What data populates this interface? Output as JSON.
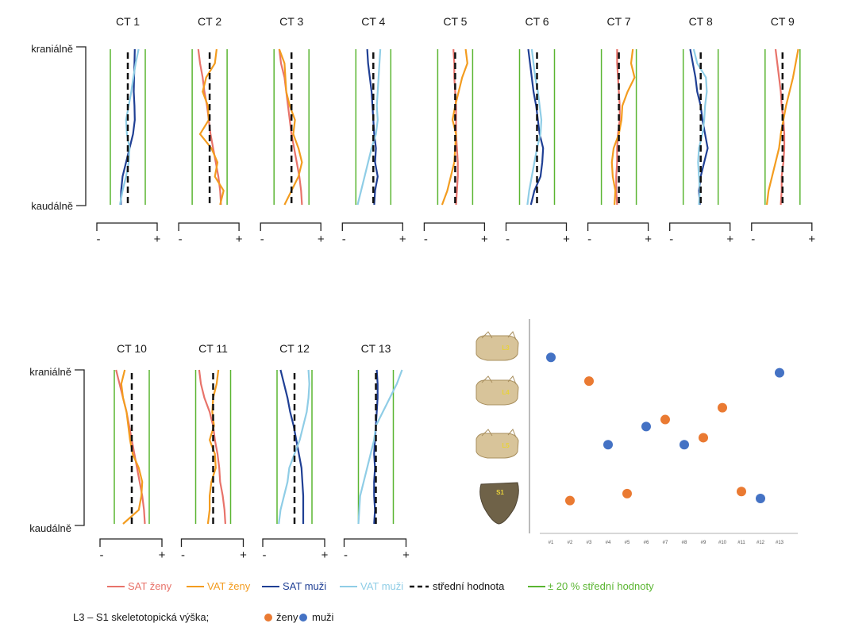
{
  "labels": {
    "top": "kraniálně",
    "bottom": "kaudálně",
    "minus": "-",
    "plus": "+"
  },
  "series_names": {
    "sat_f": "SAT ženy",
    "vat_f": "VAT ženy",
    "sat_m": "SAT muži",
    "vat_m": "VAT muži",
    "mean": "střední hodnota",
    "band": "± 20 % střední hodnoty"
  },
  "colors": {
    "sat_f": "#e8736a",
    "vat_f": "#f39c1f",
    "sat_m": "#1f3f94",
    "vat_m": "#8fcde6",
    "mean": "#111111",
    "band": "#5ab531",
    "dot_f": "#ea7a32",
    "dot_m": "#4472c4"
  },
  "legend": {
    "sat_f": "SAT ženy",
    "vat_f": "VAT ženy",
    "sat_m": "SAT muži",
    "vat_m": "VAT muži",
    "mean": "střední hodnota",
    "band": "± 20 % střední hodnoty",
    "scatter_prefix": "L3 – S1 skeletotopická výška;",
    "female": "ženy",
    "male": "muži"
  },
  "vertebrae": [
    "L3",
    "L4",
    "L5",
    "S1"
  ],
  "chart_data": [
    {
      "type": "line",
      "description": "Profile charts of fat distribution along the cranio-caudal axis; value axis from - to +, vertical axis from kraniálně (top) to kaudálně (bottom)",
      "x_label_left": "-",
      "x_label_right": "+",
      "y_label_top": "kraniálně",
      "y_label_bottom": "kaudálně",
      "panels": [
        {
          "title": "CT 1",
          "series": [
            {
              "key": "sat_m",
              "points": [
                0.4,
                0.38,
                0.36,
                0.34,
                0.38,
                0.4,
                0.3,
                0.1,
                -0.1,
                -0.3,
                -0.38,
                -0.4
              ]
            },
            {
              "key": "vat_m",
              "points": [
                0.62,
                0.45,
                0.32,
                0.2,
                0.05,
                -0.1,
                -0.05,
                0.1,
                0.05,
                -0.1,
                -0.3,
                -0.45
              ]
            }
          ]
        },
        {
          "title": "CT 2",
          "series": [
            {
              "key": "sat_f",
              "points": [
                -0.65,
                -0.55,
                -0.4,
                -0.3,
                -0.15,
                -0.05,
                0.05,
                0.2,
                0.35,
                0.5,
                0.6,
                0.65
              ]
            },
            {
              "key": "vat_f",
              "points": [
                0.4,
                0.3,
                -0.2,
                -0.4,
                -0.1,
                -0.05,
                -0.55,
                0.1,
                0.45,
                0.3,
                0.8,
                0.6
              ]
            }
          ]
        },
        {
          "title": "CT 3",
          "series": [
            {
              "key": "sat_f",
              "points": [
                -0.7,
                -0.6,
                -0.4,
                -0.3,
                -0.2,
                -0.1,
                0.0,
                0.15,
                0.3,
                0.45,
                0.55,
                0.6
              ]
            },
            {
              "key": "vat_f",
              "points": [
                -0.7,
                -0.4,
                -0.35,
                -0.3,
                -0.1,
                0.2,
                0.1,
                0.4,
                0.6,
                0.4,
                0.0,
                -0.4
              ]
            }
          ]
        },
        {
          "title": "CT 4",
          "series": [
            {
              "key": "sat_m",
              "points": [
                -0.35,
                -0.3,
                -0.2,
                -0.1,
                -0.05,
                0.0,
                0.05,
                0.15,
                0.1,
                0.25,
                0.1,
                0.05
              ]
            },
            {
              "key": "vat_m",
              "points": [
                0.4,
                0.35,
                0.3,
                0.25,
                0.2,
                0.25,
                0.15,
                -0.1,
                -0.3,
                -0.5,
                -0.7,
                -0.9
              ]
            }
          ]
        },
        {
          "title": "CT 5",
          "series": [
            {
              "key": "sat_f",
              "points": [
                -0.1,
                -0.05,
                -0.05,
                0.0,
                0.05,
                0.05,
                0.05,
                0.1,
                0.15,
                0.15,
                0.1,
                0.05
              ]
            },
            {
              "key": "vat_f",
              "points": [
                0.6,
                0.7,
                0.4,
                0.2,
                0.0,
                -0.15,
                0.05,
                0.0,
                -0.05,
                -0.25,
                -0.45,
                -0.75
              ]
            }
          ]
        },
        {
          "title": "CT 6",
          "series": [
            {
              "key": "sat_m",
              "points": [
                -0.5,
                -0.4,
                -0.3,
                -0.2,
                -0.05,
                0.05,
                0.15,
                0.35,
                0.3,
                0.2,
                -0.15,
                -0.35
              ]
            },
            {
              "key": "vat_m",
              "points": [
                -0.3,
                -0.2,
                -0.1,
                0.05,
                0.15,
                0.25,
                0.2,
                0.0,
                -0.15,
                -0.3,
                -0.45,
                -0.55
              ]
            }
          ]
        },
        {
          "title": "CT 7",
          "series": [
            {
              "key": "sat_f",
              "points": [
                -0.1,
                -0.1,
                -0.05,
                0.0,
                0.05,
                0.05,
                -0.05,
                -0.1,
                -0.1,
                -0.15,
                -0.15,
                -0.1
              ]
            },
            {
              "key": "vat_f",
              "points": [
                0.8,
                0.7,
                0.9,
                0.5,
                0.2,
                0.15,
                0.0,
                -0.3,
                -0.4,
                -0.35,
                -0.2,
                -0.25
              ]
            }
          ]
        },
        {
          "title": "CT 8",
          "series": [
            {
              "key": "sat_m",
              "points": [
                -0.6,
                -0.45,
                -0.3,
                -0.2,
                0.0,
                0.1,
                0.25,
                0.4,
                0.2,
                0.0,
                -0.1,
                -0.05
              ]
            },
            {
              "key": "vat_m",
              "points": [
                -0.4,
                -0.2,
                0.3,
                0.35,
                0.25,
                0.2,
                0.1,
                -0.1,
                -0.15,
                -0.1,
                -0.05,
                -0.1
              ]
            }
          ]
        },
        {
          "title": "CT 9",
          "series": [
            {
              "key": "sat_f",
              "points": [
                -0.4,
                -0.3,
                -0.2,
                -0.1,
                -0.05,
                0.05,
                0.1,
                0.1,
                0.05,
                -0.05,
                -0.05,
                -0.1
              ]
            },
            {
              "key": "vat_f",
              "points": [
                0.9,
                0.75,
                0.6,
                0.4,
                0.2,
                0.05,
                -0.1,
                -0.2,
                -0.4,
                -0.6,
                -0.8,
                -0.9
              ]
            }
          ]
        },
        {
          "title": "CT 10",
          "series": [
            {
              "key": "sat_f",
              "points": [
                -0.9,
                -0.7,
                -0.5,
                -0.3,
                -0.15,
                0.0,
                0.15,
                0.3,
                0.45,
                0.6,
                0.7,
                0.75
              ]
            },
            {
              "key": "vat_f",
              "points": [
                -0.4,
                -0.6,
                -0.5,
                -0.3,
                -0.2,
                -0.1,
                0.05,
                0.4,
                0.6,
                0.55,
                0.4,
                -0.5
              ]
            }
          ]
        },
        {
          "title": "CT 11",
          "series": [
            {
              "key": "sat_f",
              "points": [
                -0.8,
                -0.7,
                -0.5,
                -0.2,
                0.0,
                0.1,
                0.25,
                0.35,
                0.4,
                0.55,
                0.65,
                0.7
              ]
            },
            {
              "key": "vat_f",
              "points": [
                0.3,
                0.2,
                0.0,
                -0.05,
                0.05,
                -0.2,
                0.1,
                0.15,
                -0.1,
                -0.2,
                -0.2,
                -0.3
              ]
            }
          ]
        },
        {
          "title": "CT 12",
          "series": [
            {
              "key": "sat_m",
              "points": [
                -0.8,
                -0.6,
                -0.4,
                -0.25,
                -0.05,
                0.1,
                0.25,
                0.4,
                0.45,
                0.5,
                0.5,
                0.5
              ]
            },
            {
              "key": "vat_m",
              "points": [
                0.8,
                0.85,
                0.8,
                0.7,
                0.5,
                0.3,
                0.0,
                -0.3,
                -0.4,
                -0.6,
                -0.8,
                -0.9
              ]
            }
          ]
        },
        {
          "title": "CT 13",
          "series": [
            {
              "key": "sat_m",
              "points": [
                0.05,
                0.1,
                0.1,
                0.05,
                0.0,
                -0.05,
                -0.1,
                -0.05,
                -0.1,
                -0.1,
                -0.05,
                -0.1
              ]
            },
            {
              "key": "vat_m",
              "points": [
                1.5,
                1.2,
                0.8,
                0.4,
                0.0,
                -0.1,
                -0.3,
                -0.5,
                -0.7,
                -0.9,
                -0.95,
                -1.0
              ]
            }
          ]
        }
      ]
    },
    {
      "type": "scatter",
      "description": "Scatter of skeletotopic height L3 – S1 per case",
      "categories": [
        "#1",
        "#2",
        "#3",
        "#4",
        "#5",
        "#6",
        "#7",
        "#8",
        "#9",
        "#10",
        "#11",
        "#12",
        "#13"
      ],
      "y_levels": [
        "L3",
        "L4",
        "L5",
        "S1"
      ],
      "series": [
        {
          "name": "ženy",
          "points": [
            [
              2,
              0.22
            ],
            [
              3,
              1.93
            ],
            [
              5,
              0.32
            ],
            [
              7,
              1.38
            ],
            [
              9,
              1.12
            ],
            [
              10,
              1.55
            ],
            [
              11,
              0.35
            ]
          ]
        },
        {
          "name": "muži",
          "points": [
            [
              1,
              2.27
            ],
            [
              4,
              1.02
            ],
            [
              6,
              1.28
            ],
            [
              8,
              1.02
            ],
            [
              12,
              0.25
            ],
            [
              13,
              2.05
            ]
          ]
        }
      ]
    }
  ]
}
